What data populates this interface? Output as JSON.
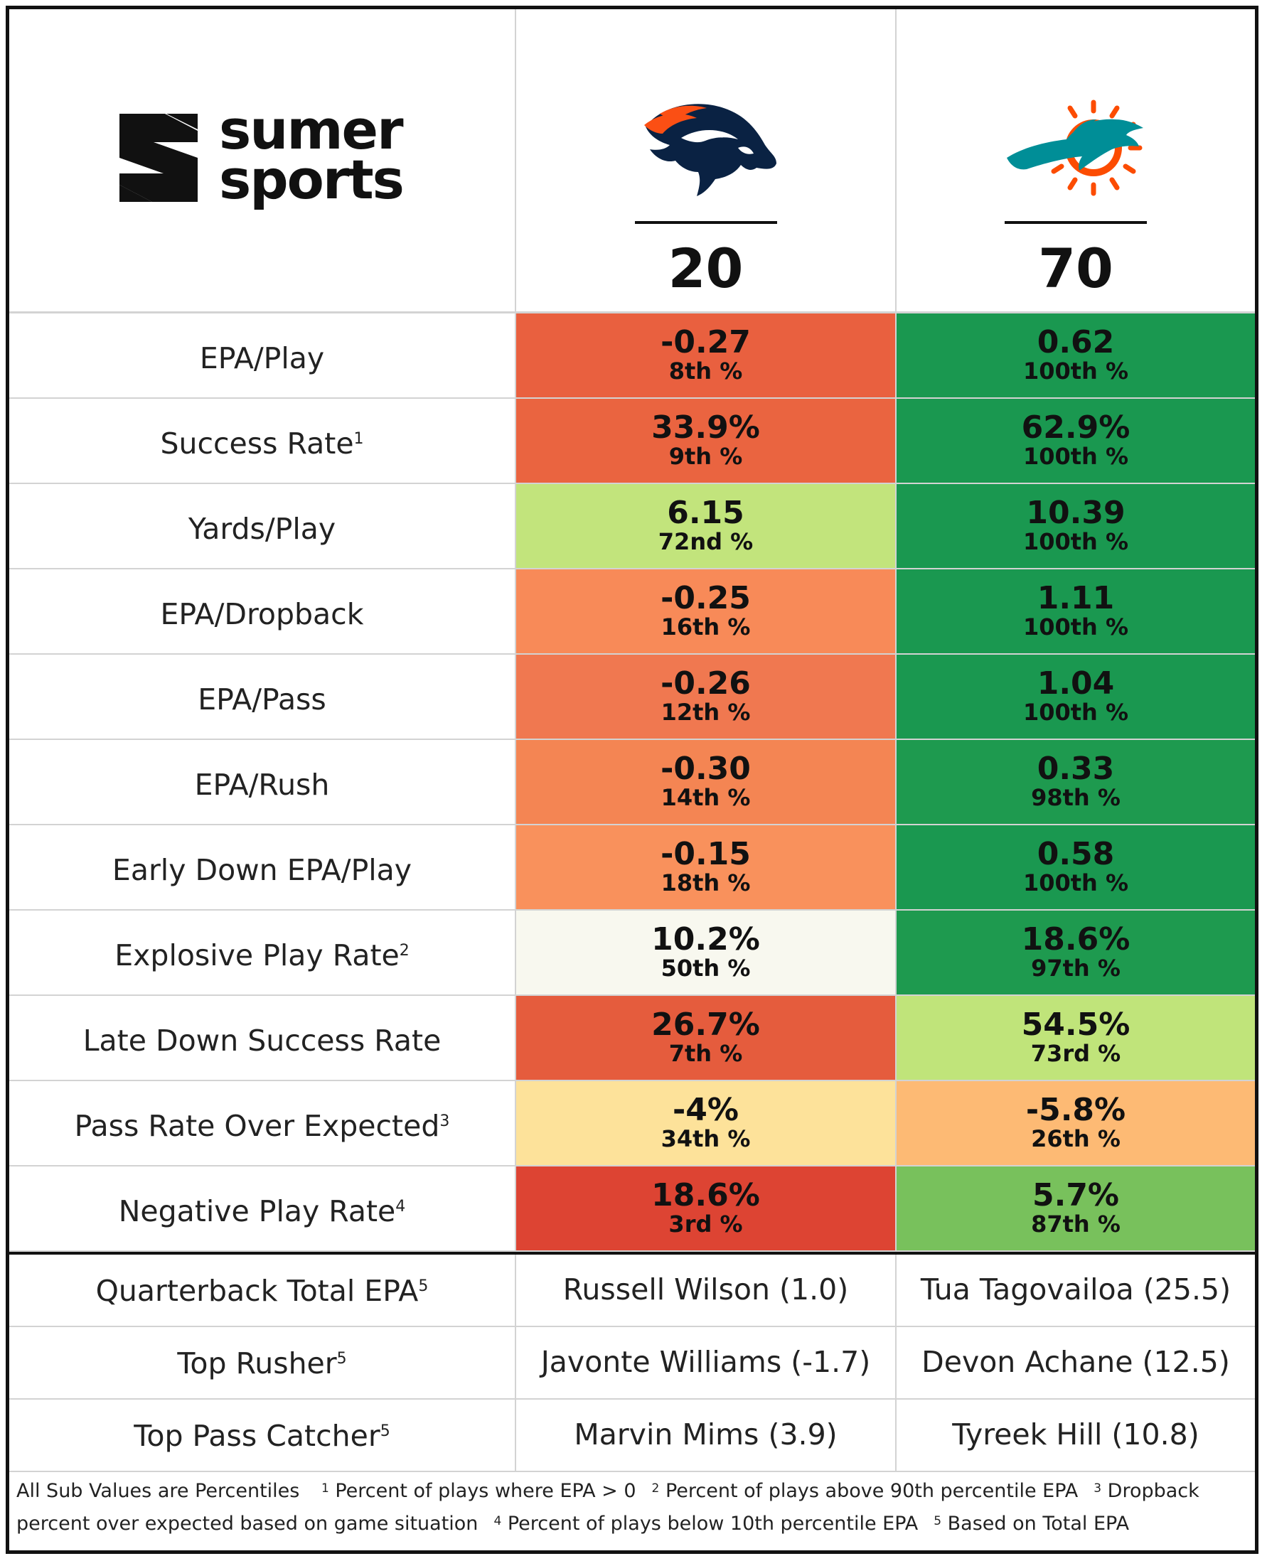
{
  "brand": {
    "line1": "sumer",
    "line2": "sports"
  },
  "teams": [
    {
      "name_icon": "broncos-logo-icon",
      "score": "20",
      "colors": {
        "primary": "#FB4F14",
        "secondary": "#002244"
      }
    },
    {
      "name_icon": "dolphins-logo-icon",
      "score": "70",
      "colors": {
        "primary": "#008E97",
        "secondary": "#FC4C02"
      }
    }
  ],
  "metrics": [
    {
      "label": "EPA/Play",
      "sup": "",
      "a": {
        "value": "-0.27",
        "pct": "8th %",
        "color": "#e9603f"
      },
      "b": {
        "value": "0.62",
        "pct": "100th %",
        "color": "#1a9850"
      }
    },
    {
      "label": "Success Rate",
      "sup": "1",
      "a": {
        "value": "33.9%",
        "pct": "9th %",
        "color": "#ea6440"
      },
      "b": {
        "value": "62.9%",
        "pct": "100th %",
        "color": "#1a9850"
      }
    },
    {
      "label": "Yards/Play",
      "sup": "",
      "a": {
        "value": "6.15",
        "pct": "72nd %",
        "color": "#c2e47c"
      },
      "b": {
        "value": "10.39",
        "pct": "100th %",
        "color": "#1a9850"
      }
    },
    {
      "label": "EPA/Dropback",
      "sup": "",
      "a": {
        "value": "-0.25",
        "pct": "16th %",
        "color": "#f88a58"
      },
      "b": {
        "value": "1.11",
        "pct": "100th %",
        "color": "#1a9850"
      }
    },
    {
      "label": "EPA/Pass",
      "sup": "",
      "a": {
        "value": "-0.26",
        "pct": "12th %",
        "color": "#f07850"
      },
      "b": {
        "value": "1.04",
        "pct": "100th %",
        "color": "#1a9850"
      }
    },
    {
      "label": "EPA/Rush",
      "sup": "",
      "a": {
        "value": "-0.30",
        "pct": "14th %",
        "color": "#f48553"
      },
      "b": {
        "value": "0.33",
        "pct": "98th %",
        "color": "#1e9a4f"
      }
    },
    {
      "label": "Early Down EPA/Play",
      "sup": "",
      "a": {
        "value": "-0.15",
        "pct": "18th %",
        "color": "#f9915c"
      },
      "b": {
        "value": "0.58",
        "pct": "100th %",
        "color": "#1a9850"
      }
    },
    {
      "label": "Explosive Play Rate",
      "sup": "2",
      "a": {
        "value": "10.2%",
        "pct": "50th %",
        "color": "#f8f8ef"
      },
      "b": {
        "value": "18.6%",
        "pct": "97th %",
        "color": "#1e9a4f"
      }
    },
    {
      "label": "Late Down Success Rate",
      "sup": "",
      "a": {
        "value": "26.7%",
        "pct": "7th %",
        "color": "#e55c3d"
      },
      "b": {
        "value": "54.5%",
        "pct": "73rd %",
        "color": "#c0e47a"
      }
    },
    {
      "label": "Pass Rate Over Expected",
      "sup": "3",
      "a": {
        "value": "-4%",
        "pct": "34th %",
        "color": "#fde29a"
      },
      "b": {
        "value": "-5.8%",
        "pct": "26th %",
        "color": "#fdba74"
      }
    },
    {
      "label": "Negative Play Rate",
      "sup": "4",
      "a": {
        "value": "18.6%",
        "pct": "3rd %",
        "color": "#dd4433"
      },
      "b": {
        "value": "5.7%",
        "pct": "87th %",
        "color": "#78c15c"
      }
    }
  ],
  "players": [
    {
      "label": "Quarterback Total EPA",
      "sup": "5",
      "a": "Russell Wilson (1.0)",
      "b": "Tua Tagovailoa (25.5)"
    },
    {
      "label": "Top Rusher",
      "sup": "5",
      "a": "Javonte Williams (-1.7)",
      "b": "Devon Achane (12.5)"
    },
    {
      "label": "Top Pass Catcher",
      "sup": "5",
      "a": "Marvin Mims (3.9)",
      "b": "Tyreek Hill (10.8)"
    }
  ],
  "footnotes": {
    "intro": "All Sub Values are Percentiles",
    "items": [
      {
        "n": "1",
        "text": "Percent of plays where EPA > 0"
      },
      {
        "n": "2",
        "text": "Percent of plays above 90th percentile EPA"
      },
      {
        "n": "3",
        "text": "Dropback percent over expected based on game situation"
      },
      {
        "n": "4",
        "text": "Percent of plays below 10th percentile EPA"
      },
      {
        "n": "5",
        "text": "Based on Total EPA"
      }
    ]
  }
}
